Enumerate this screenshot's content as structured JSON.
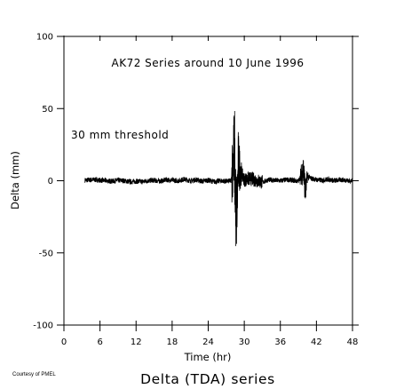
{
  "chart_data": {
    "type": "line",
    "title": "AK72 Series around 10 June 1996",
    "annotation": "30 mm threshold",
    "xlabel": "Time (hr)",
    "ylabel": "Delta (mm)",
    "xlim": [
      0,
      48
    ],
    "ylim": [
      -100,
      100
    ],
    "x_ticks": [
      0,
      6,
      12,
      18,
      24,
      30,
      36,
      42,
      48
    ],
    "y_ticks": [
      -100,
      -50,
      0,
      50,
      100
    ],
    "grid": false,
    "series": [
      {
        "x": [
          3.5,
          5,
          6,
          7,
          8,
          9,
          10,
          11,
          12,
          13,
          14,
          15,
          16,
          17,
          18,
          19,
          20,
          21,
          22,
          23,
          24,
          25,
          26,
          27,
          27.8,
          28.0,
          28.2,
          28.4,
          28.6,
          28.8,
          29.0,
          29.5,
          30,
          31,
          32,
          33,
          34,
          35,
          36,
          37,
          38,
          39,
          39.5,
          39.8,
          40.2,
          40.5,
          41,
          42,
          43,
          44,
          45,
          46,
          47,
          48
        ],
        "y": [
          1,
          2,
          1,
          0,
          -1,
          1,
          0,
          -2,
          -1,
          -2,
          0,
          1,
          -1,
          2,
          1,
          0,
          3,
          0,
          2,
          -1,
          1,
          -2,
          0,
          -1,
          0,
          25,
          58,
          45,
          -68,
          -55,
          35,
          15,
          2,
          4,
          1,
          -3,
          2,
          1,
          0,
          2,
          1,
          -1,
          13,
          24,
          -22,
          10,
          5,
          2,
          1,
          3,
          0,
          2,
          1,
          -1
        ]
      }
    ]
  },
  "credit": "Courtesy of PMEL",
  "footer_title": "Delta (TDA) series"
}
